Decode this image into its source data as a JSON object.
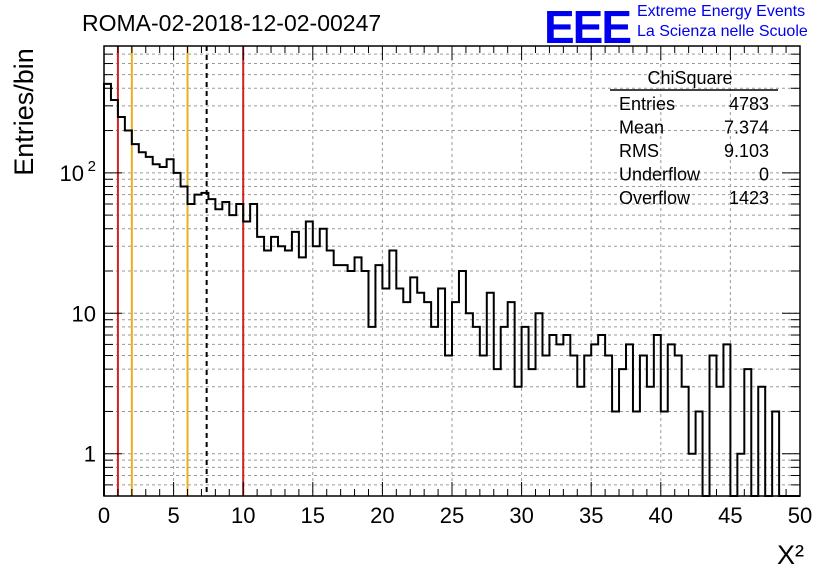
{
  "title": "ROMA-02-2018-12-02-00247",
  "logo": {
    "mark": "EEE",
    "line1": "Extreme Energy Events",
    "line2": "La Scienza nelle Scuole"
  },
  "chart_data": {
    "type": "histogram",
    "title": "ROMA-02-2018-12-02-00247",
    "xlabel": "X²",
    "ylabel": "Entries/bin",
    "xlim": [
      0,
      50
    ],
    "ylim": [
      0.5,
      800
    ],
    "yscale": "log",
    "grid": true,
    "x_ticks": [
      0,
      5,
      10,
      15,
      20,
      25,
      30,
      35,
      40,
      45,
      50
    ],
    "x_tick_labels": [
      "0",
      "5",
      "10",
      "15",
      "20",
      "25",
      "30",
      "35",
      "40",
      "45",
      "50"
    ],
    "y_ticks": [
      1,
      10,
      100
    ],
    "y_tick_labels": [
      "1",
      "10",
      "10²"
    ],
    "bin_width": 0.5,
    "bin_contents": [
      430,
      330,
      250,
      200,
      160,
      140,
      130,
      115,
      110,
      125,
      100,
      80,
      60,
      70,
      72,
      65,
      55,
      62,
      50,
      60,
      45,
      60,
      35,
      28,
      35,
      30,
      28,
      38,
      25,
      45,
      30,
      40,
      28,
      22,
      22,
      20,
      25,
      20,
      8,
      22,
      15,
      28,
      15,
      12,
      18,
      14,
      12,
      8,
      15,
      5,
      12,
      20,
      10,
      8,
      5,
      14,
      4,
      8,
      12,
      3,
      8,
      4,
      10,
      5,
      7,
      6,
      7,
      5,
      3,
      5,
      6,
      7,
      5,
      2,
      4,
      6,
      2,
      5,
      3,
      7,
      2,
      6,
      5,
      3,
      1,
      2,
      0,
      5,
      3,
      6,
      0,
      1,
      4,
      0,
      3,
      0,
      2,
      0,
      0,
      0
    ],
    "lines": [
      {
        "x": 1,
        "color": "#d42020",
        "style": "solid"
      },
      {
        "x": 2,
        "color": "#e8b020",
        "style": "solid"
      },
      {
        "x": 6,
        "color": "#e8b020",
        "style": "solid"
      },
      {
        "x": 7.374,
        "color": "#000000",
        "style": "dashed"
      },
      {
        "x": 10,
        "color": "#d42020",
        "style": "solid"
      }
    ],
    "stats_box": {
      "title": "ChiSquare",
      "rows": [
        {
          "label": "Entries",
          "value": "4783"
        },
        {
          "label": "Mean",
          "value": "7.374"
        },
        {
          "label": "RMS",
          "value": "9.103"
        },
        {
          "label": "Underflow",
          "value": "0"
        },
        {
          "label": "Overflow",
          "value": "1423"
        }
      ],
      "placement": "top-right"
    }
  }
}
